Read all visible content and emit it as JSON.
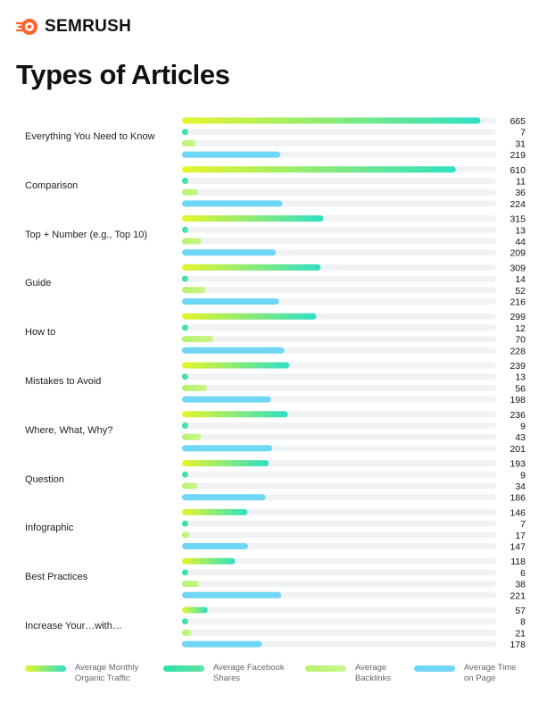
{
  "brand": {
    "name": "SEMRUSH"
  },
  "page_title": "Types of Articles",
  "legend": [
    {
      "label": "Average Monthly Organic Traffic",
      "key": "traffic"
    },
    {
      "label": "Average Facebook Shares",
      "key": "shares"
    },
    {
      "label": "Average Backlinks",
      "key": "backlinks"
    },
    {
      "label": "Average Time on Page",
      "key": "time"
    }
  ],
  "colors": {
    "traffic_start": "#e6f52a",
    "traffic_end": "#2ee0c4",
    "shares_start": "#2ee0a8",
    "shares_end": "#5fe3a0",
    "backlinks_start": "#b6f26a",
    "backlinks_end": "#ccf58d",
    "time": "#6fd6f5",
    "track": "#f1f2f4",
    "logo": "#ff642d"
  },
  "chart_data": {
    "type": "bar",
    "title": "Types of Articles",
    "orientation": "horizontal",
    "categories": [
      "Everything You Need to Know",
      "Comparison",
      "Top + Number (e.g., Top 10)",
      "Guide",
      "How to",
      "Mistakes to Avoid",
      "Where, What, Why?",
      "Question",
      "Infographic",
      "Best Practices",
      "Increase Your…with…"
    ],
    "series": [
      {
        "name": "Average Monthly Organic Traffic",
        "values": [
          665,
          610,
          315,
          309,
          299,
          239,
          236,
          193,
          146,
          118,
          57
        ]
      },
      {
        "name": "Average Facebook Shares",
        "values": [
          7,
          11,
          13,
          14,
          12,
          13,
          9,
          9,
          7,
          6,
          8
        ]
      },
      {
        "name": "Average Backlinks",
        "values": [
          31,
          36,
          44,
          52,
          70,
          56,
          43,
          34,
          17,
          38,
          21
        ]
      },
      {
        "name": "Average Time on Page",
        "values": [
          219,
          224,
          209,
          216,
          228,
          198,
          201,
          186,
          147,
          221,
          178
        ]
      }
    ],
    "xlim": [
      0,
      700
    ],
    "grid": false,
    "legend_position": "bottom"
  }
}
